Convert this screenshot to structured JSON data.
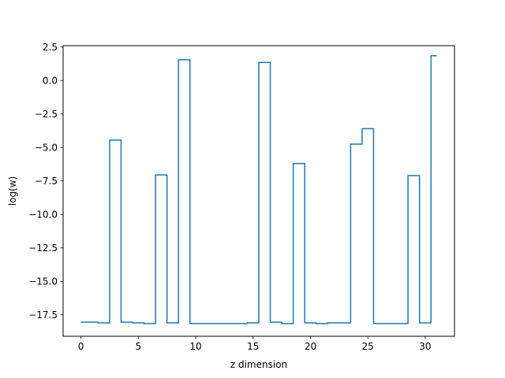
{
  "chart_data": {
    "type": "line",
    "drawstyle": "steps-mid",
    "title": "",
    "xlabel": "z dimension",
    "ylabel": "log(w)",
    "xlim": [
      -1.55,
      32.55
    ],
    "ylim": [
      -19.1,
      2.6
    ],
    "xticks": [
      0,
      5,
      10,
      15,
      20,
      25,
      30
    ],
    "xtick_labels": [
      "0",
      "5",
      "10",
      "15",
      "20",
      "25",
      "30"
    ],
    "yticks": [
      2.5,
      0.0,
      -2.5,
      -5.0,
      -7.5,
      -10.0,
      -12.5,
      -15.0,
      -17.5
    ],
    "ytick_labels": [
      "2.5",
      "0.0",
      "−2.5",
      "−5.0",
      "−7.5",
      "−10.0",
      "−12.5",
      "−15.0",
      "−17.5"
    ],
    "grid": false,
    "line_color": "#1f77b4",
    "x": [
      0,
      1,
      2,
      3,
      4,
      5,
      6,
      7,
      8,
      9,
      10,
      11,
      12,
      13,
      14,
      15,
      16,
      17,
      18,
      19,
      20,
      21,
      22,
      23,
      24,
      25,
      26,
      27,
      28,
      29,
      30,
      31
    ],
    "y": [
      -18.05,
      -18.05,
      -18.1,
      -4.45,
      -18.05,
      -18.1,
      -18.15,
      -7.05,
      -18.1,
      1.55,
      -18.15,
      -18.15,
      -18.15,
      -18.15,
      -18.15,
      -18.1,
      1.35,
      -18.05,
      -18.15,
      -6.2,
      -18.1,
      -18.15,
      -18.1,
      -18.1,
      -4.75,
      -3.6,
      -18.15,
      -18.15,
      -18.15,
      -7.1,
      -18.1,
      1.85
    ]
  }
}
